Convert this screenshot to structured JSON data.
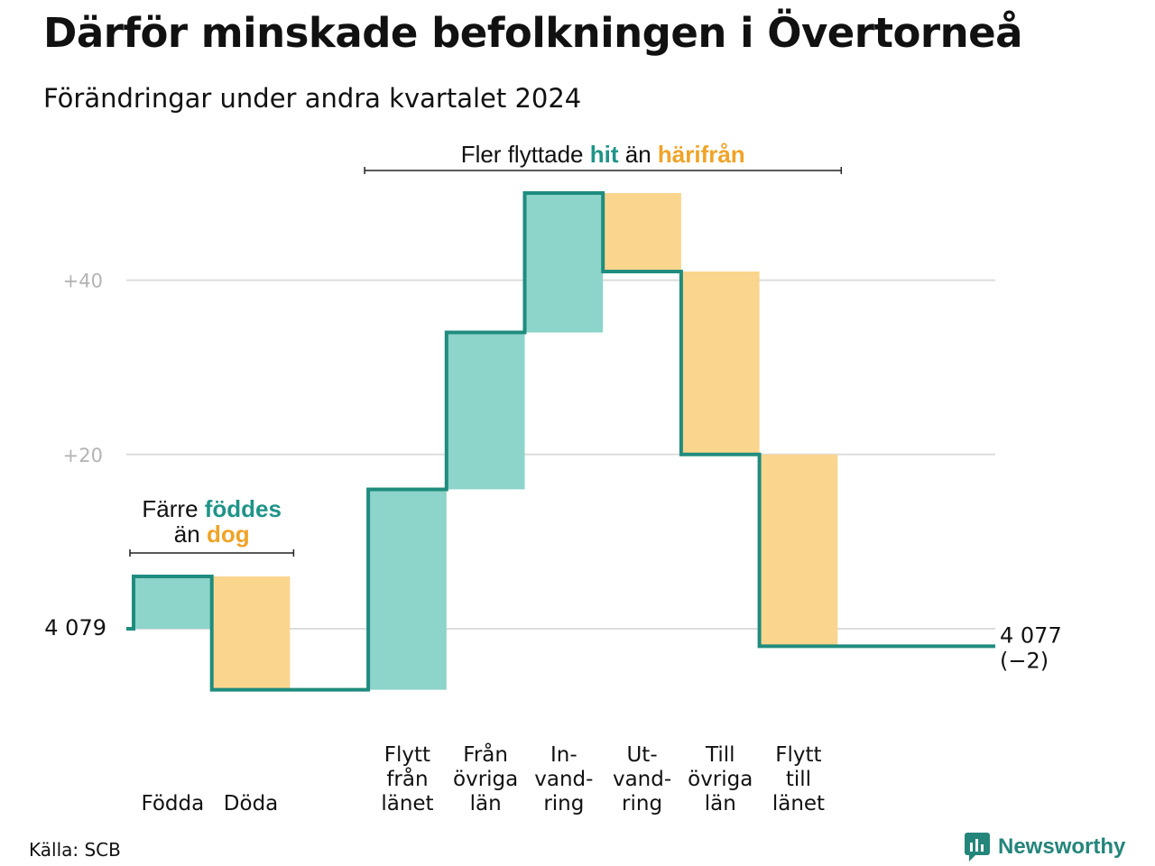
{
  "title": "Därför minskade befolkningen i Övertorneå",
  "subtitle": "Förändringar under andra kvartalet 2024",
  "source": "Källa: SCB",
  "logo_text": "Newsworthy",
  "colors": {
    "increase": "#8dd4ca",
    "decrease": "#fad58e",
    "line": "#1f8c7e",
    "grid": "#dddddd",
    "teal_text": "#1f9488",
    "orange_text": "#f0a327"
  },
  "chart_data": {
    "type": "waterfall",
    "baseline_value": 4079,
    "start_label": "4 079",
    "end_label": "4 077",
    "end_change_label": "(−2)",
    "ylim": [
      -7,
      51
    ],
    "yticks": [
      {
        "value": 20,
        "label": "+20"
      },
      {
        "value": 40,
        "label": "+40"
      }
    ],
    "steps": [
      {
        "label": [
          "Födda"
        ],
        "value": 6
      },
      {
        "label": [
          "Döda"
        ],
        "value": -13
      },
      {
        "label": [],
        "value": 0
      },
      {
        "label": [
          "Flytt",
          "från",
          "länet"
        ],
        "value": 23
      },
      {
        "label": [
          "Från",
          "övriga",
          "län"
        ],
        "value": 18
      },
      {
        "label": [
          "In-",
          "vand-",
          "ring"
        ],
        "value": 16
      },
      {
        "label": [
          "Ut-",
          "vand-",
          "ring"
        ],
        "value": -9
      },
      {
        "label": [
          "Till",
          "övriga",
          "län"
        ],
        "value": -21
      },
      {
        "label": [
          "Flytt",
          "till",
          "länet"
        ],
        "value": -22
      },
      {
        "label": [],
        "value": 0
      }
    ],
    "annotations": [
      {
        "parts": [
          {
            "text": "Färre ",
            "style": "plain"
          },
          {
            "text": "föddes",
            "style": "teal"
          }
        ],
        "parts2": [
          {
            "text": "än ",
            "style": "plain"
          },
          {
            "text": "dog",
            "style": "orange"
          }
        ],
        "from_step": 0,
        "to_step": 1
      },
      {
        "parts": [
          {
            "text": "Fler flyttade ",
            "style": "plain"
          },
          {
            "text": "hit",
            "style": "teal"
          },
          {
            "text": "  än ",
            "style": "plain"
          },
          {
            "text": "härifrån",
            "style": "orange"
          }
        ],
        "from_step": 3,
        "to_step": 8
      }
    ]
  }
}
